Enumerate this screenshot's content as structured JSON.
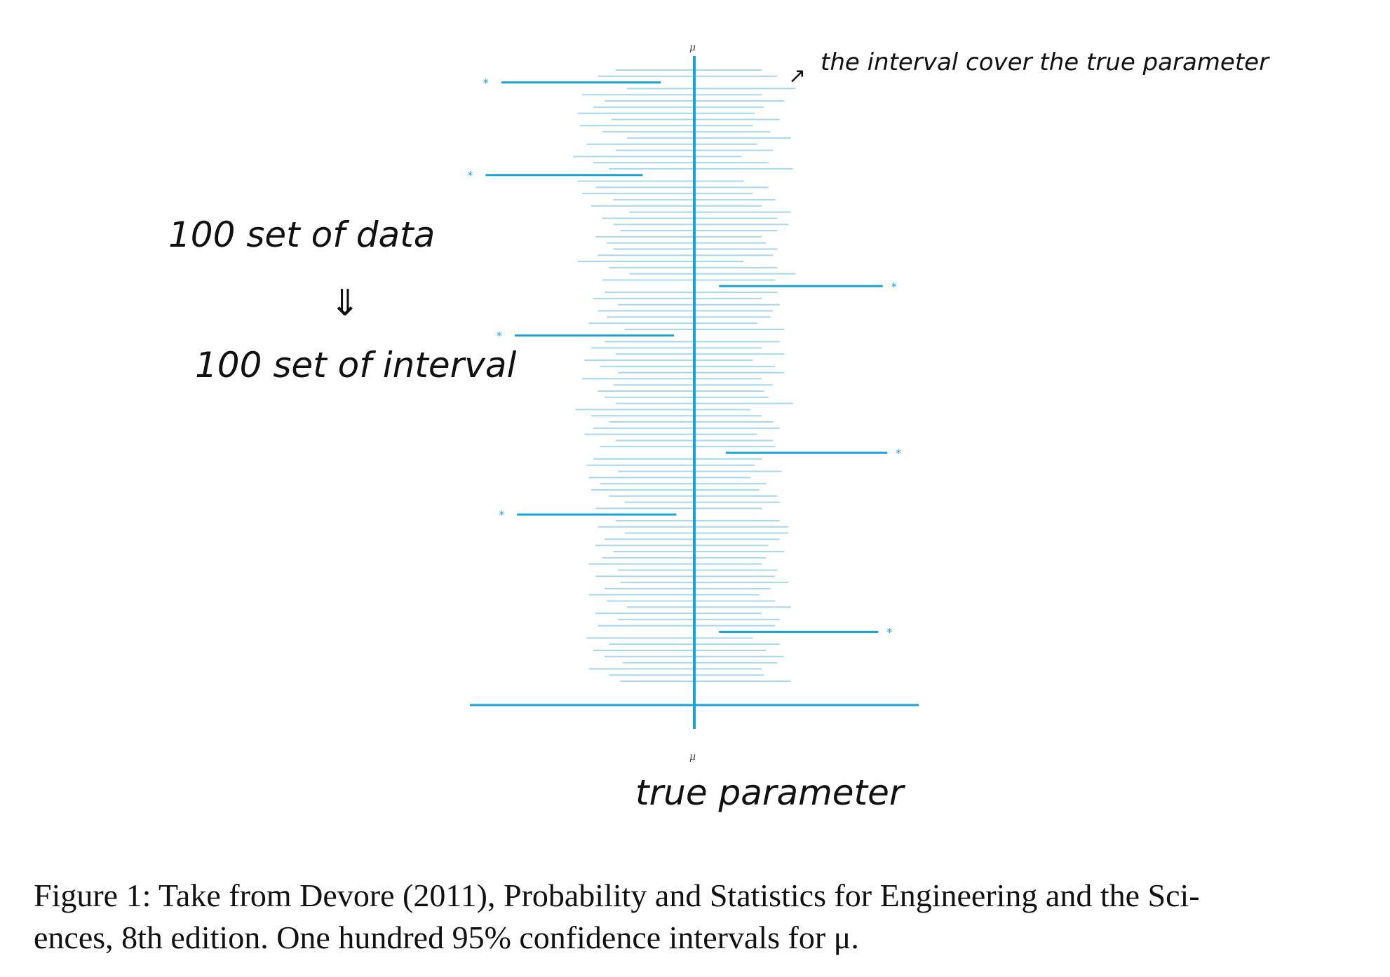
{
  "annotations": {
    "top_right": "the interval cover the true parameter",
    "left_top": "100 set of data",
    "left_arrow": "⇓",
    "left_bottom": "100 set of interval",
    "bottom": "true parameter",
    "small_arrow": "↗"
  },
  "caption": {
    "line1": "Figure 1: Take from Devore (2011), Probability and Statistics for Engineering and the Sci-",
    "line2": "ences, 8th edition. One hundred 95% confidence intervals for μ."
  },
  "colors": {
    "covering": "#a8d8ee",
    "missing": "#1aa3d6",
    "mu_line": "#1aa3d6",
    "axis": "#1aa3d6"
  },
  "chart_data": {
    "type": "interval",
    "mu_label_top": "μ",
    "mu_label_bottom": "μ",
    "mu": 0,
    "xlim": [
      -1,
      1
    ],
    "intervals": [
      {
        "lo": -0.35,
        "hi": 0.3
      },
      {
        "lo": -0.43,
        "hi": 0.37
      },
      {
        "lo": -0.86,
        "hi": -0.15,
        "miss": true
      },
      {
        "lo": -0.3,
        "hi": 0.45
      },
      {
        "lo": -0.5,
        "hi": 0.3
      },
      {
        "lo": -0.4,
        "hi": 0.4
      },
      {
        "lo": -0.45,
        "hi": 0.31
      },
      {
        "lo": -0.52,
        "hi": 0.27
      },
      {
        "lo": -0.37,
        "hi": 0.38
      },
      {
        "lo": -0.51,
        "hi": 0.26
      },
      {
        "lo": -0.41,
        "hi": 0.34
      },
      {
        "lo": -0.3,
        "hi": 0.43
      },
      {
        "lo": -0.48,
        "hi": 0.28
      },
      {
        "lo": -0.35,
        "hi": 0.35
      },
      {
        "lo": -0.54,
        "hi": 0.21
      },
      {
        "lo": -0.45,
        "hi": 0.33
      },
      {
        "lo": -0.38,
        "hi": 0.44
      },
      {
        "lo": -0.93,
        "hi": -0.23,
        "miss": true
      },
      {
        "lo": -0.52,
        "hi": 0.22
      },
      {
        "lo": -0.44,
        "hi": 0.33
      },
      {
        "lo": -0.5,
        "hi": 0.26
      },
      {
        "lo": -0.36,
        "hi": 0.36
      },
      {
        "lo": -0.46,
        "hi": 0.3
      },
      {
        "lo": -0.29,
        "hi": 0.43
      },
      {
        "lo": -0.41,
        "hi": 0.37
      },
      {
        "lo": -0.36,
        "hi": 0.42
      },
      {
        "lo": -0.33,
        "hi": 0.37
      },
      {
        "lo": -0.44,
        "hi": 0.3
      },
      {
        "lo": -0.39,
        "hi": 0.32
      },
      {
        "lo": -0.36,
        "hi": 0.37
      },
      {
        "lo": -0.43,
        "hi": 0.35
      },
      {
        "lo": -0.52,
        "hi": 0.22
      },
      {
        "lo": -0.38,
        "hi": 0.37
      },
      {
        "lo": -0.29,
        "hi": 0.45
      },
      {
        "lo": -0.41,
        "hi": 0.36
      },
      {
        "lo": 0.11,
        "hi": 0.84,
        "miss": true
      },
      {
        "lo": -0.4,
        "hi": 0.37
      },
      {
        "lo": -0.45,
        "hi": 0.3
      },
      {
        "lo": -0.34,
        "hi": 0.38
      },
      {
        "lo": -0.43,
        "hi": 0.35
      },
      {
        "lo": -0.39,
        "hi": 0.34
      },
      {
        "lo": -0.47,
        "hi": 0.28
      },
      {
        "lo": -0.31,
        "hi": 0.4
      },
      {
        "lo": -0.8,
        "hi": -0.09,
        "miss": true
      },
      {
        "lo": -0.4,
        "hi": 0.38
      },
      {
        "lo": -0.46,
        "hi": 0.3
      },
      {
        "lo": -0.35,
        "hi": 0.4
      },
      {
        "lo": -0.49,
        "hi": 0.26
      },
      {
        "lo": -0.42,
        "hi": 0.36
      },
      {
        "lo": -0.34,
        "hi": 0.4
      },
      {
        "lo": -0.5,
        "hi": 0.3
      },
      {
        "lo": -0.36,
        "hi": 0.35
      },
      {
        "lo": -0.43,
        "hi": 0.31
      },
      {
        "lo": -0.4,
        "hi": 0.33
      },
      {
        "lo": -0.35,
        "hi": 0.44
      },
      {
        "lo": -0.53,
        "hi": 0.25
      },
      {
        "lo": -0.46,
        "hi": 0.3
      },
      {
        "lo": -0.38,
        "hi": 0.35
      },
      {
        "lo": -0.45,
        "hi": 0.38
      },
      {
        "lo": -0.49,
        "hi": 0.28
      },
      {
        "lo": -0.35,
        "hi": 0.35
      },
      {
        "lo": -0.42,
        "hi": 0.36
      },
      {
        "lo": 0.14,
        "hi": 0.86,
        "miss": true
      },
      {
        "lo": -0.45,
        "hi": 0.3
      },
      {
        "lo": -0.48,
        "hi": 0.27
      },
      {
        "lo": -0.34,
        "hi": 0.39
      },
      {
        "lo": -0.47,
        "hi": 0.25
      },
      {
        "lo": -0.42,
        "hi": 0.32
      },
      {
        "lo": -0.46,
        "hi": 0.29
      },
      {
        "lo": -0.38,
        "hi": 0.37
      },
      {
        "lo": -0.31,
        "hi": 0.38
      },
      {
        "lo": -0.44,
        "hi": 0.3
      },
      {
        "lo": -0.79,
        "hi": -0.08,
        "miss": true
      },
      {
        "lo": -0.35,
        "hi": 0.38
      },
      {
        "lo": -0.43,
        "hi": 0.42
      },
      {
        "lo": -0.31,
        "hi": 0.42
      },
      {
        "lo": -0.4,
        "hi": 0.38
      },
      {
        "lo": -0.44,
        "hi": 0.33
      },
      {
        "lo": -0.36,
        "hi": 0.4
      },
      {
        "lo": -0.41,
        "hi": 0.32
      },
      {
        "lo": -0.47,
        "hi": 0.3
      },
      {
        "lo": -0.34,
        "hi": 0.37
      },
      {
        "lo": -0.44,
        "hi": 0.36
      },
      {
        "lo": -0.33,
        "hi": 0.42
      },
      {
        "lo": -0.4,
        "hi": 0.34
      },
      {
        "lo": -0.47,
        "hi": 0.29
      },
      {
        "lo": -0.39,
        "hi": 0.36
      },
      {
        "lo": -0.3,
        "hi": 0.43
      },
      {
        "lo": -0.44,
        "hi": 0.3
      },
      {
        "lo": -0.34,
        "hi": 0.38
      },
      {
        "lo": -0.43,
        "hi": 0.36
      },
      {
        "lo": 0.11,
        "hi": 0.82,
        "miss": true
      },
      {
        "lo": -0.48,
        "hi": 0.26
      },
      {
        "lo": -0.38,
        "hi": 0.38
      },
      {
        "lo": -0.45,
        "hi": 0.32
      },
      {
        "lo": -0.4,
        "hi": 0.4
      },
      {
        "lo": -0.32,
        "hi": 0.37
      },
      {
        "lo": -0.47,
        "hi": 0.3
      },
      {
        "lo": -0.38,
        "hi": 0.31
      },
      {
        "lo": -0.33,
        "hi": 0.43
      }
    ],
    "axis": {
      "lo": -1,
      "hi": 1
    }
  }
}
